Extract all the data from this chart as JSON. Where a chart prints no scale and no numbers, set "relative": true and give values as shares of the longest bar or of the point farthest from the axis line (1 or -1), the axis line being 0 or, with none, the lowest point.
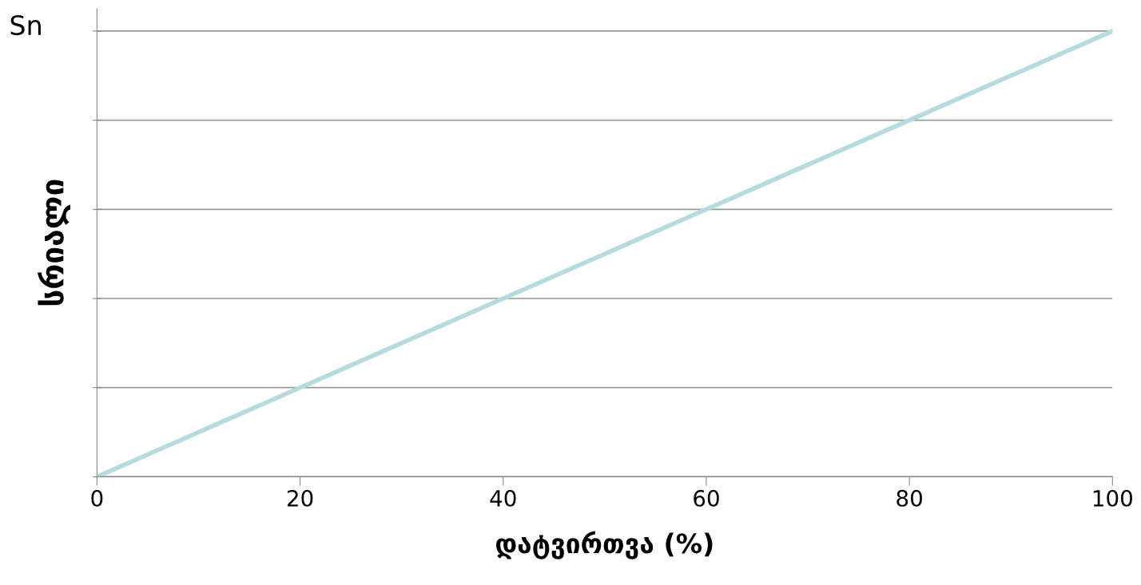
{
  "chart_data": {
    "type": "line",
    "xlabel": "დატვირთვა (%)",
    "ylabel": "სრიალი",
    "annotations": [
      "Sn"
    ],
    "x": [
      0,
      20,
      40,
      60,
      80,
      100
    ],
    "series": [
      {
        "color": "#b4dbe0",
        "values": [
          0,
          0.2,
          0.4,
          0.6,
          0.8,
          1
        ]
      }
    ],
    "relative": true,
    "xlim": [
      0,
      100
    ],
    "xticks": [
      0,
      20,
      40,
      60,
      80,
      100
    ],
    "grid": "y",
    "tick_labels": "x",
    "line_style": "solid",
    "marker": "none"
  }
}
